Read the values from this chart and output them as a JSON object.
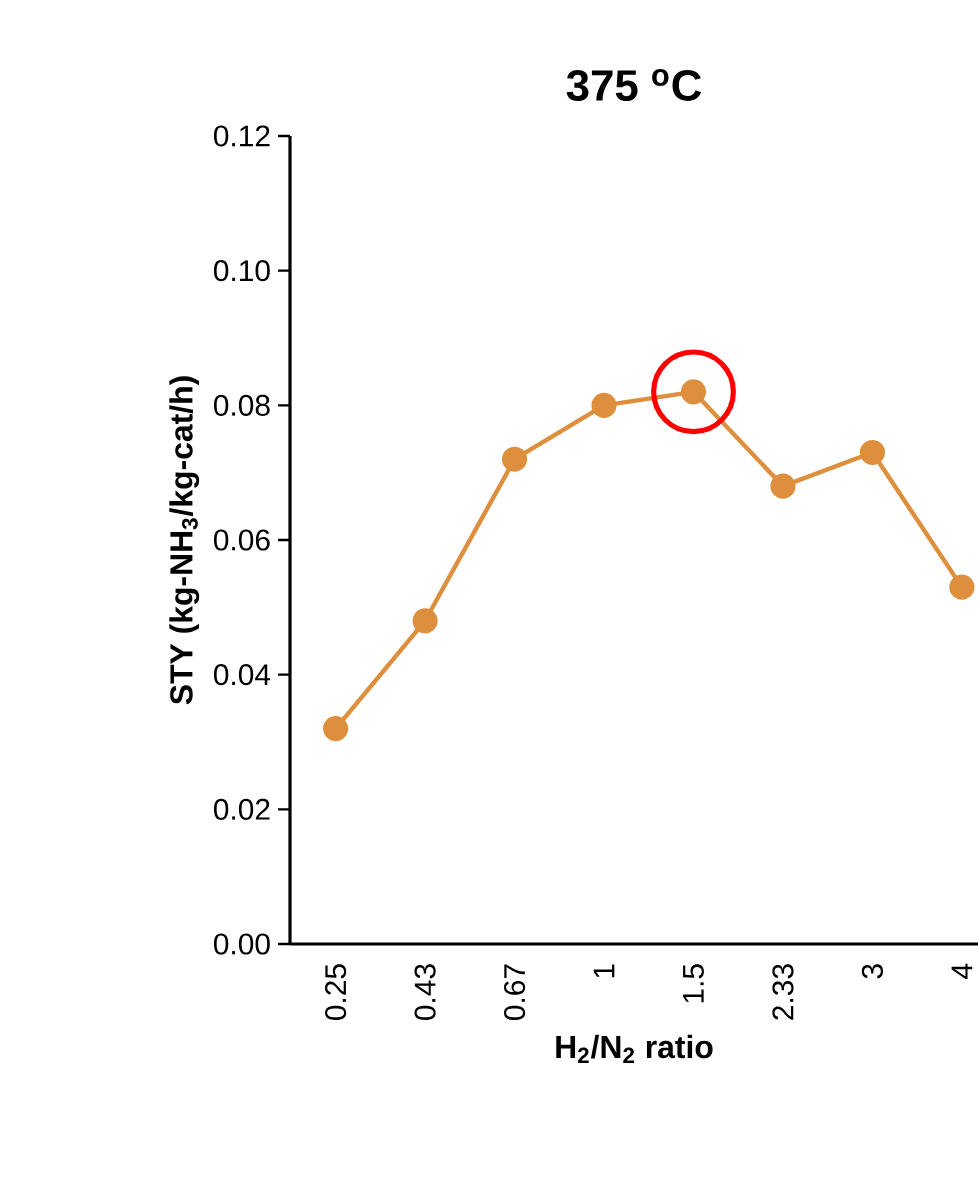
{
  "chart_data": {
    "type": "line",
    "title": "375 $^{o}$C",
    "xlabel": "H$_{2}$/N$_{2}$ ratio",
    "ylabel": "STY (kg-NH$_{3}$/kg-cat/h)",
    "categories": [
      "0.25",
      "0.43",
      "0.67",
      "1",
      "1.5",
      "2.33",
      "3",
      "4"
    ],
    "series": [
      {
        "color": "#dd8f3d",
        "values": [
          0.032,
          0.048,
          0.072,
          0.08,
          0.082,
          0.068,
          0.073,
          0.053
        ]
      }
    ],
    "ylim": [
      0,
      0.12
    ],
    "yticks": [
      {
        "value": 0,
        "label": "0.00"
      },
      {
        "value": 0.02,
        "label": "0.02"
      },
      {
        "value": 0.04,
        "label": "0.04"
      },
      {
        "value": 0.06,
        "label": "0.06"
      },
      {
        "value": 0.08,
        "label": "0.08"
      },
      {
        "value": 0.1,
        "label": "0.10"
      },
      {
        "value": 0.12,
        "label": "0.12"
      }
    ],
    "marker": "circle",
    "line_style": "solid",
    "grid": false
  }
}
